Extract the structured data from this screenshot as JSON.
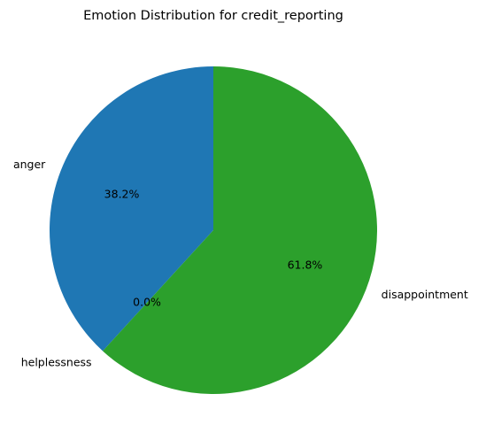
{
  "chart_data": {
    "type": "pie",
    "title": "Emotion Distribution for credit_reporting",
    "slices": [
      {
        "label": "anger",
        "value": 38.2,
        "percent_label": "38.2%",
        "color": "#1f77b4"
      },
      {
        "label": "helplessness",
        "value": 0.0,
        "percent_label": "0.0%",
        "color": "#ff7f0e"
      },
      {
        "label": "disappointment",
        "value": 61.8,
        "percent_label": "61.8%",
        "color": "#2ca02c"
      }
    ],
    "start_angle_deg": 90,
    "direction": "counterclockwise",
    "legend": "none"
  }
}
